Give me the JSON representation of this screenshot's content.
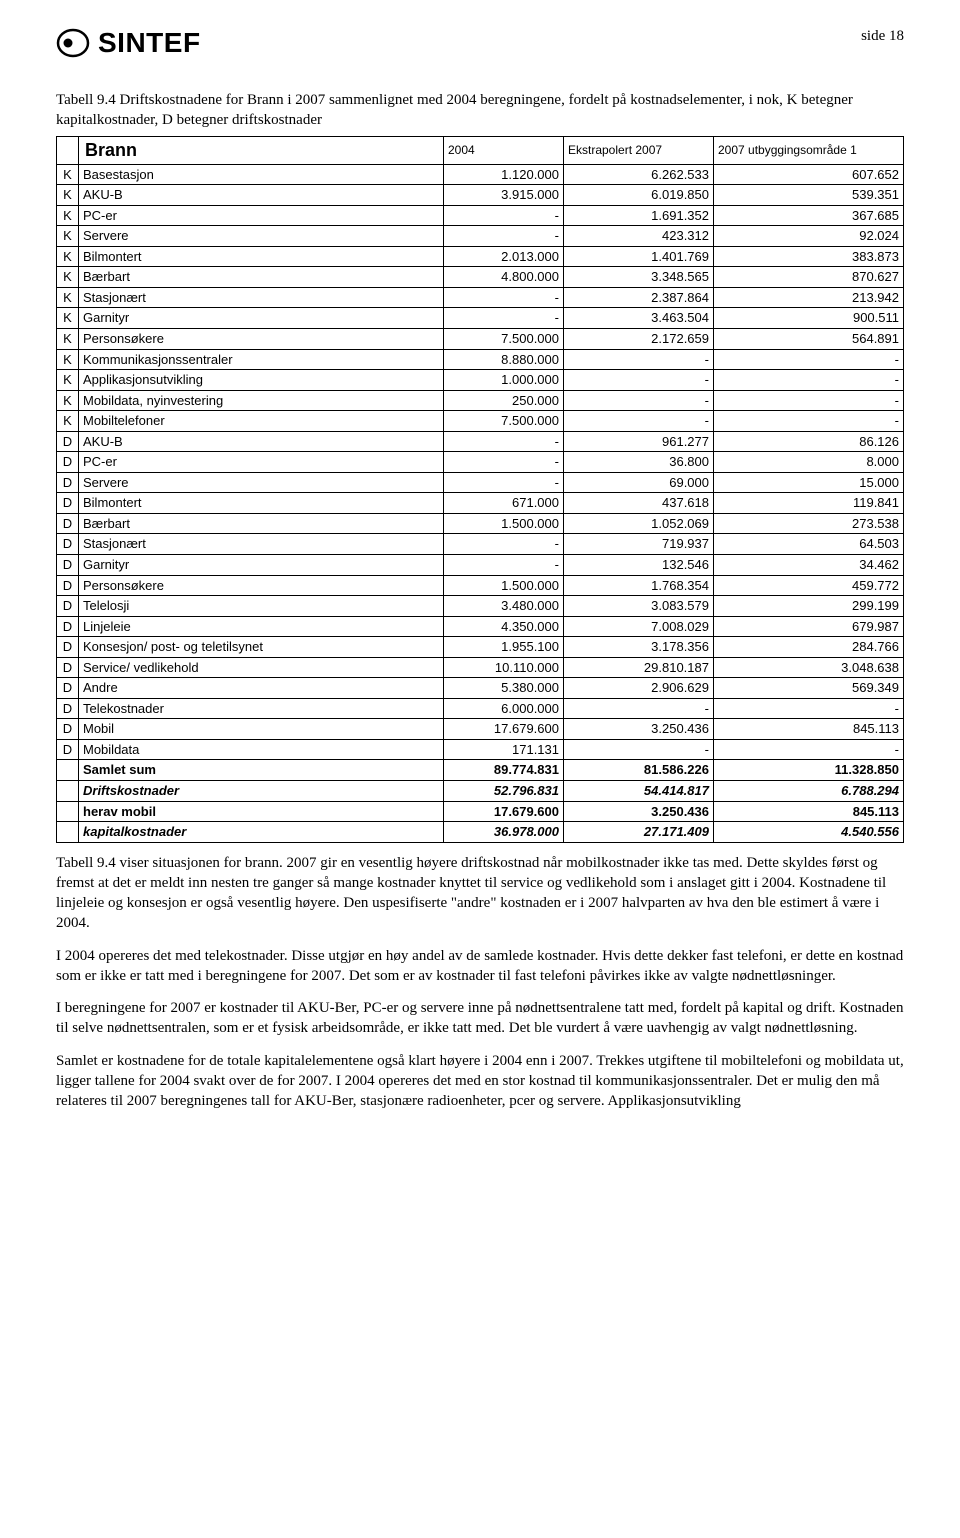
{
  "page_label": "side 18",
  "logo_text": "SINTEF",
  "caption": "Tabell 9.4 Driftskostnadene for Brann i 2007 sammenlignet med 2004 beregningene, fordelt på kostnadselementer, i nok, K betegner kapitalkostnader, D betegner driftskostnader",
  "table": {
    "header": {
      "name": "Brann",
      "c2": "2004",
      "c3": "Ekstrapolert 2007",
      "c4": "2007 utbyggingsområde 1"
    },
    "rows": [
      {
        "kd": "K",
        "name": "Basestasjon",
        "v": [
          "1.120.000",
          "6.262.533",
          "607.652"
        ]
      },
      {
        "kd": "K",
        "name": "AKU-B",
        "v": [
          "3.915.000",
          "6.019.850",
          "539.351"
        ]
      },
      {
        "kd": "K",
        "name": "PC-er",
        "v": [
          "-",
          "1.691.352",
          "367.685"
        ]
      },
      {
        "kd": "K",
        "name": "Servere",
        "v": [
          "-",
          "423.312",
          "92.024"
        ]
      },
      {
        "kd": "K",
        "name": "Bilmontert",
        "v": [
          "2.013.000",
          "1.401.769",
          "383.873"
        ]
      },
      {
        "kd": "K",
        "name": "Bærbart",
        "v": [
          "4.800.000",
          "3.348.565",
          "870.627"
        ]
      },
      {
        "kd": "K",
        "name": "Stasjonært",
        "v": [
          "-",
          "2.387.864",
          "213.942"
        ]
      },
      {
        "kd": "K",
        "name": "Garnityr",
        "v": [
          "-",
          "3.463.504",
          "900.511"
        ]
      },
      {
        "kd": "K",
        "name": "Personsøkere",
        "v": [
          "7.500.000",
          "2.172.659",
          "564.891"
        ]
      },
      {
        "kd": "K",
        "name": "Kommunikasjonssentraler",
        "v": [
          "8.880.000",
          "-",
          "-"
        ]
      },
      {
        "kd": "K",
        "name": "Applikasjonsutvikling",
        "v": [
          "1.000.000",
          "-",
          "-"
        ]
      },
      {
        "kd": "K",
        "name": "Mobildata, nyinvestering",
        "v": [
          "250.000",
          "-",
          "-"
        ]
      },
      {
        "kd": "K",
        "name": "Mobiltelefoner",
        "v": [
          "7.500.000",
          "-",
          "-"
        ]
      },
      {
        "kd": "D",
        "name": "AKU-B",
        "v": [
          "-",
          "961.277",
          "86.126"
        ]
      },
      {
        "kd": "D",
        "name": "PC-er",
        "v": [
          "-",
          "36.800",
          "8.000"
        ]
      },
      {
        "kd": "D",
        "name": "Servere",
        "v": [
          "-",
          "69.000",
          "15.000"
        ]
      },
      {
        "kd": "D",
        "name": "Bilmontert",
        "v": [
          "671.000",
          "437.618",
          "119.841"
        ]
      },
      {
        "kd": "D",
        "name": "Bærbart",
        "v": [
          "1.500.000",
          "1.052.069",
          "273.538"
        ]
      },
      {
        "kd": "D",
        "name": "Stasjonært",
        "v": [
          "-",
          "719.937",
          "64.503"
        ]
      },
      {
        "kd": "D",
        "name": "Garnityr",
        "v": [
          "-",
          "132.546",
          "34.462"
        ]
      },
      {
        "kd": "D",
        "name": "Personsøkere",
        "v": [
          "1.500.000",
          "1.768.354",
          "459.772"
        ]
      },
      {
        "kd": "D",
        "name": "Telelosji",
        "v": [
          "3.480.000",
          "3.083.579",
          "299.199"
        ]
      },
      {
        "kd": "D",
        "name": "Linjeleie",
        "v": [
          "4.350.000",
          "7.008.029",
          "679.987"
        ]
      },
      {
        "kd": "D",
        "name": "Konsesjon/ post- og teletilsynet",
        "v": [
          "1.955.100",
          "3.178.356",
          "284.766"
        ]
      },
      {
        "kd": "D",
        "name": "Service/ vedlikehold",
        "v": [
          "10.110.000",
          "29.810.187",
          "3.048.638"
        ]
      },
      {
        "kd": "D",
        "name": "Andre",
        "v": [
          "5.380.000",
          "2.906.629",
          "569.349"
        ]
      },
      {
        "kd": "D",
        "name": "Telekostnader",
        "v": [
          "6.000.000",
          "-",
          "-"
        ]
      },
      {
        "kd": "D",
        "name": "Mobil",
        "v": [
          "17.679.600",
          "3.250.436",
          "845.113"
        ]
      },
      {
        "kd": "D",
        "name": "Mobildata",
        "v": [
          "171.131",
          "-",
          "-"
        ]
      }
    ],
    "summaries": [
      {
        "name": "Samlet sum",
        "v": [
          "89.774.831",
          "81.586.226",
          "11.328.850"
        ],
        "cls": "summary"
      },
      {
        "name": "Driftskostnader",
        "v": [
          "52.796.831",
          "54.414.817",
          "6.788.294"
        ],
        "cls": "summary-it"
      },
      {
        "name": "herav mobil",
        "v": [
          "17.679.600",
          "3.250.436",
          "845.113"
        ],
        "cls": "summary"
      },
      {
        "name": "kapitalkostnader",
        "v": [
          "36.978.000",
          "27.171.409",
          "4.540.556"
        ],
        "cls": "summary-it"
      }
    ]
  },
  "paragraphs": [
    "Tabell 9.4 viser situasjonen for brann. 2007 gir en vesentlig høyere driftskostnad når mobilkostnader ikke tas med. Dette skyldes først og fremst at det er meldt inn nesten tre ganger så mange kostnader knyttet til service og vedlikehold som i anslaget gitt i 2004. Kostnadene til linjeleie og konsesjon er også vesentlig høyere. Den uspesifiserte \"andre\" kostnaden er i 2007 halvparten av hva den ble estimert å være i 2004.",
    "I 2004 opereres det med telekostnader. Disse utgjør en høy andel av de samlede kostnader. Hvis dette dekker fast telefoni, er dette en kostnad som er ikke er tatt med i beregningene for 2007. Det som er av kostnader til fast telefoni påvirkes ikke av valgte nødnettløsninger.",
    "I beregningene for 2007 er kostnader til AKU-Ber, PC-er og servere inne på nødnettsentralene tatt med, fordelt på kapital og drift. Kostnaden til selve nødnettsentralen, som er et fysisk arbeidsområde, er ikke tatt med. Det ble vurdert å være uavhengig av valgt nødnettløsning.",
    "Samlet er kostnadene for de totale kapitalelementene også klart høyere i 2004 enn i 2007. Trekkes utgiftene til mobiltelefoni og mobildata ut, ligger tallene for 2004 svakt over de for 2007. I 2004 opereres det med en stor kostnad til kommunikasjonssentraler. Det er mulig den må relateres til 2007 beregningenes tall for AKU-Ber, stasjonære radioenheter, pcer og servere. Applikasjonsutvikling"
  ]
}
